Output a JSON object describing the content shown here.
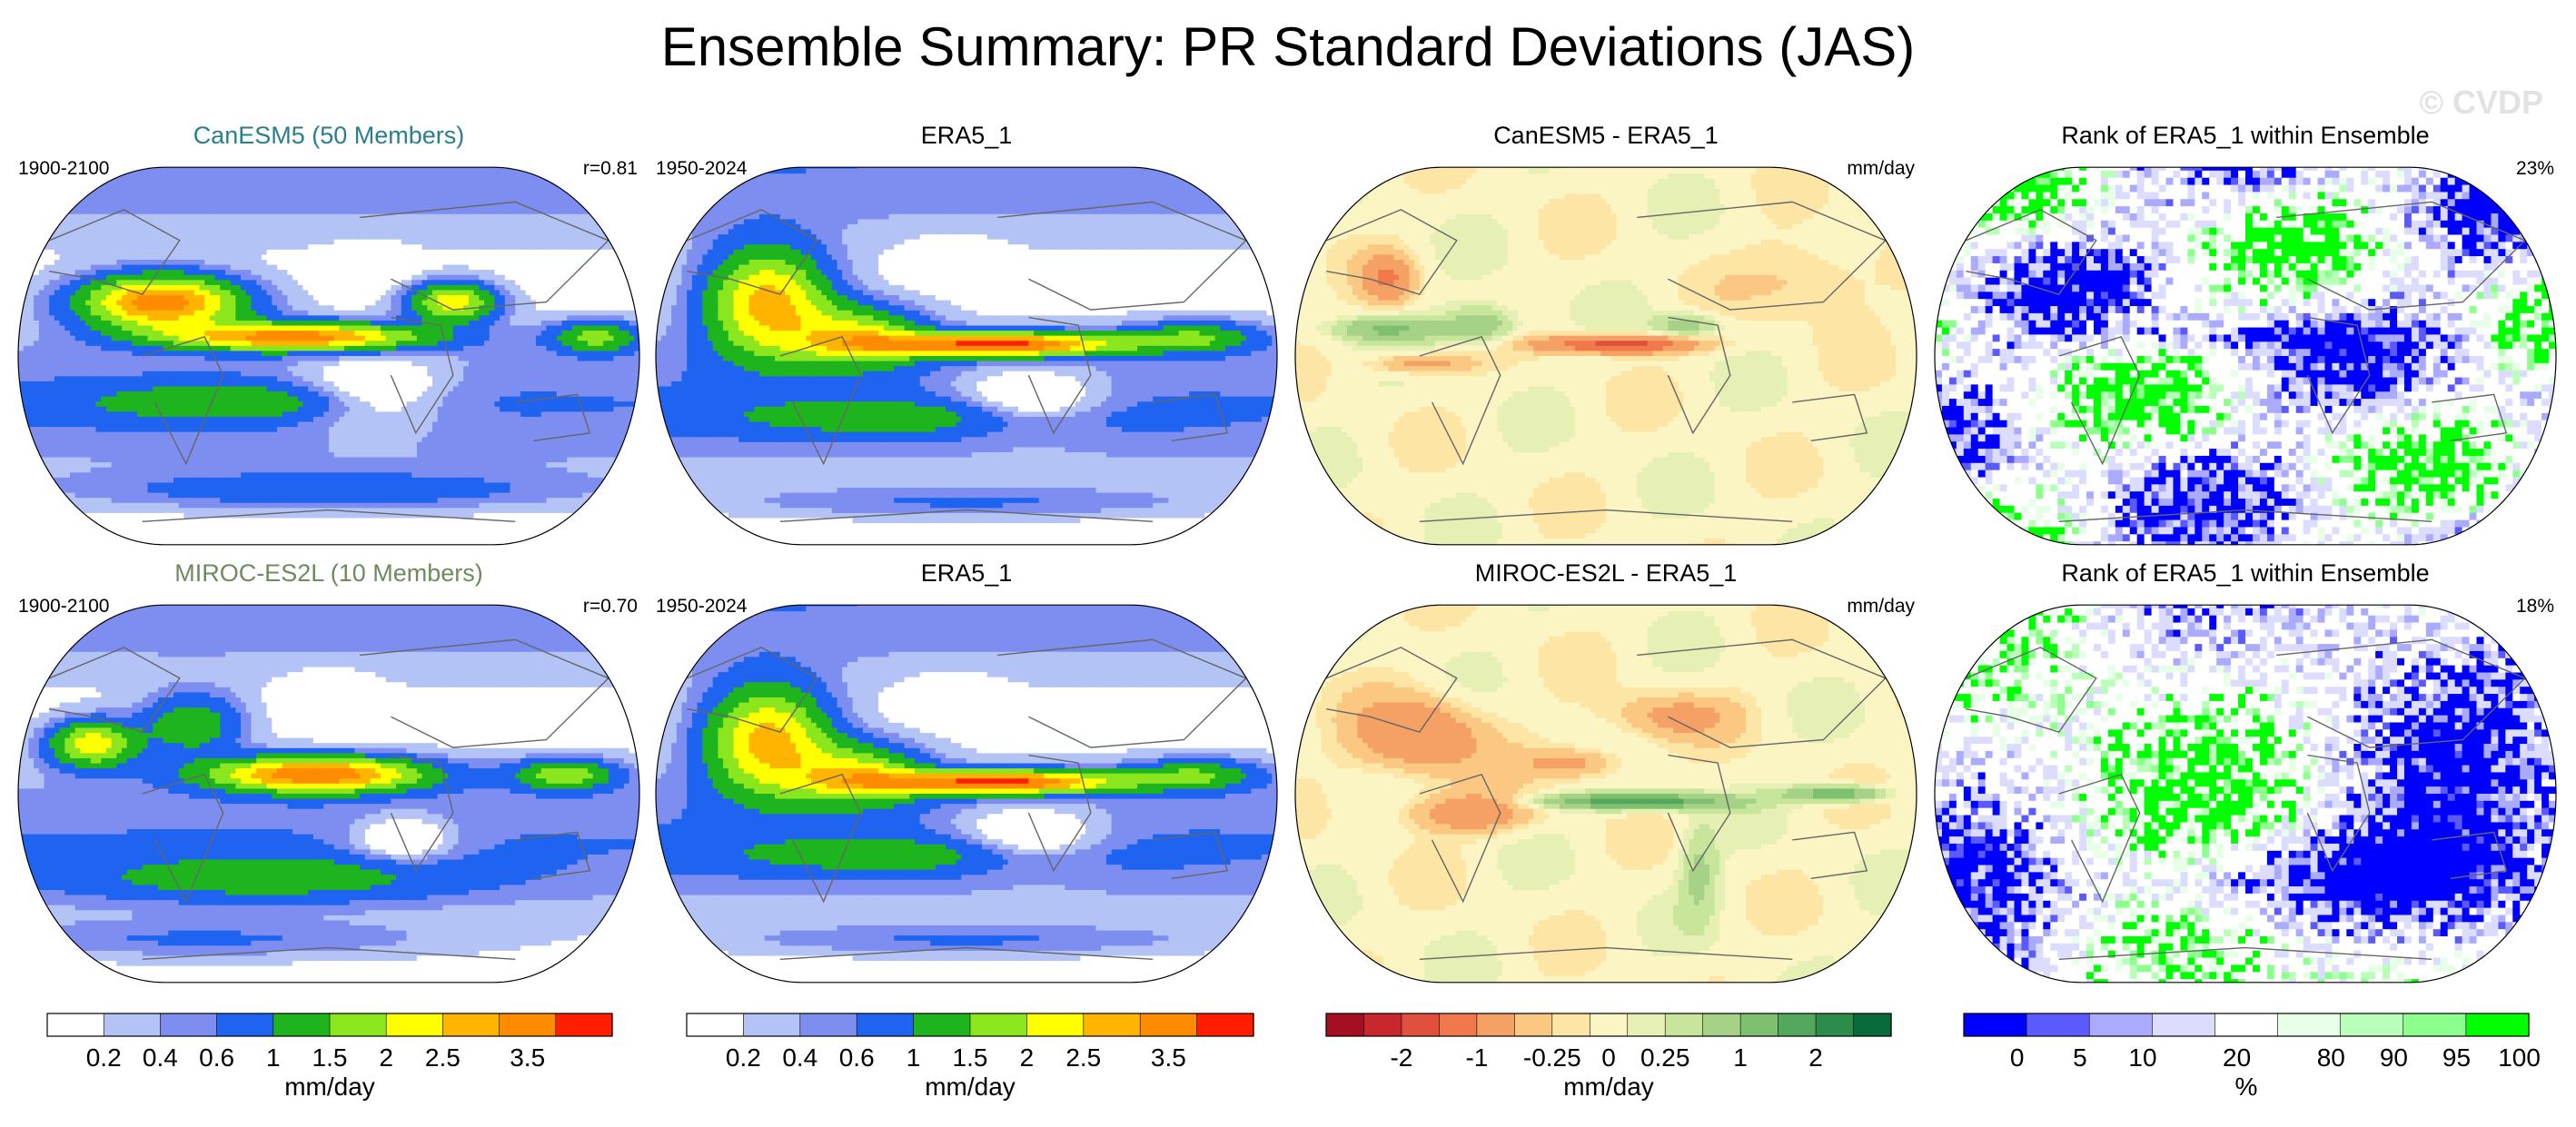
{
  "title": "Ensemble Summary: PR Standard Deviations (JAS)",
  "watermark": "© CVDP",
  "colors": {
    "canesm5_title": "#2a7f8f",
    "miroc_title": "#6d8b5f",
    "land_outline": "#666666",
    "std_scale": [
      "#ffffff",
      "#b4c3f5",
      "#7d8ef0",
      "#1e64f0",
      "#1eb41e",
      "#8ce61e",
      "#ffff00",
      "#ffb400",
      "#ff8c00",
      "#ff1e00"
    ],
    "diff_scale": [
      "#a50f23",
      "#c8282d",
      "#e1503c",
      "#f0784b",
      "#f5a064",
      "#fac882",
      "#fde6a5",
      "#fbf5c4",
      "#e6f0b4",
      "#c8e69b",
      "#a5d287",
      "#7ec070",
      "#54a85e",
      "#2d8c4b",
      "#0a6b3a"
    ],
    "rank_scale": [
      "#0000ff",
      "#5a5aff",
      "#aaaaff",
      "#dcdcff",
      "#ffffff",
      "#e6ffe6",
      "#b9ffb9",
      "#8cff8c",
      "#00ff00"
    ]
  },
  "panels": [
    {
      "row": 0,
      "col": 0,
      "title": "CanESM5 (50 Members)",
      "left_label": "1900-2100",
      "right_label": "r=0.81",
      "kind": "std",
      "variant": "canesm5"
    },
    {
      "row": 0,
      "col": 1,
      "title": "ERA5_1",
      "left_label": "1950-2024",
      "right_label": "",
      "kind": "std",
      "variant": "era5"
    },
    {
      "row": 0,
      "col": 2,
      "title": "CanESM5 - ERA5_1",
      "left_label": "",
      "right_label": "mm/day",
      "kind": "diff",
      "variant": "canesm5"
    },
    {
      "row": 0,
      "col": 3,
      "title": "Rank of ERA5_1 within Ensemble",
      "left_label": "",
      "right_label": "23%",
      "kind": "rank",
      "variant": "canesm5"
    },
    {
      "row": 1,
      "col": 0,
      "title": "MIROC-ES2L (10 Members)",
      "left_label": "1900-2100",
      "right_label": "r=0.70",
      "kind": "std",
      "variant": "miroc"
    },
    {
      "row": 1,
      "col": 1,
      "title": "ERA5_1",
      "left_label": "1950-2024",
      "right_label": "",
      "kind": "std",
      "variant": "era5"
    },
    {
      "row": 1,
      "col": 2,
      "title": "MIROC-ES2L - ERA5_1",
      "left_label": "",
      "right_label": "mm/day",
      "kind": "diff",
      "variant": "miroc"
    },
    {
      "row": 1,
      "col": 3,
      "title": "Rank of ERA5_1 within Ensemble",
      "left_label": "",
      "right_label": "18%",
      "kind": "rank",
      "variant": "miroc"
    }
  ],
  "colorbars": [
    {
      "col": 0,
      "kind": "std",
      "ticks": [
        "0.2",
        "0.4",
        "0.6",
        "1",
        "1.5",
        "2",
        "2.5",
        "3.5"
      ],
      "units": "mm/day"
    },
    {
      "col": 1,
      "kind": "std",
      "ticks": [
        "0.2",
        "0.4",
        "0.6",
        "1",
        "1.5",
        "2",
        "2.5",
        "3.5"
      ],
      "units": "mm/day"
    },
    {
      "col": 2,
      "kind": "diff",
      "ticks": [
        "-2",
        "-1",
        "-0.25",
        "0",
        "0.25",
        "1",
        "2"
      ],
      "units": "mm/day"
    },
    {
      "col": 3,
      "kind": "rank",
      "ticks": [
        "0",
        "5",
        "10",
        "20",
        "80",
        "90",
        "95",
        "100"
      ],
      "units": "%"
    }
  ],
  "chart_data": {
    "type": "heatmap",
    "title": "Ensemble Summary: PR Standard Deviations (JAS)",
    "projection": "Robinson (global maps)",
    "variable": "Precipitation (PR) standard deviation, July-August-September",
    "std_contour_levels_mm_per_day": [
      0.2,
      0.4,
      0.6,
      1,
      1.5,
      2,
      2.5,
      3,
      3.5
    ],
    "diff_contour_levels_mm_per_day": [
      -2.5,
      -2,
      -1.5,
      -1,
      -0.5,
      -0.25,
      -0.1,
      0,
      0.1,
      0.25,
      0.5,
      1,
      1.5,
      2,
      2.5
    ],
    "rank_levels_percent": [
      0,
      5,
      10,
      20,
      80,
      90,
      95,
      100
    ],
    "pattern_correlations": {
      "CanESM5": 0.81,
      "MIROC-ES2L": 0.7
    },
    "rank_summary_percent": {
      "CanESM5": 23,
      "MIROC-ES2L": 18
    },
    "periods": {
      "models": "1900-2100",
      "observations": "1950-2024"
    },
    "ensemble_members": {
      "CanESM5": 50,
      "MIROC-ES2L": 10
    }
  }
}
